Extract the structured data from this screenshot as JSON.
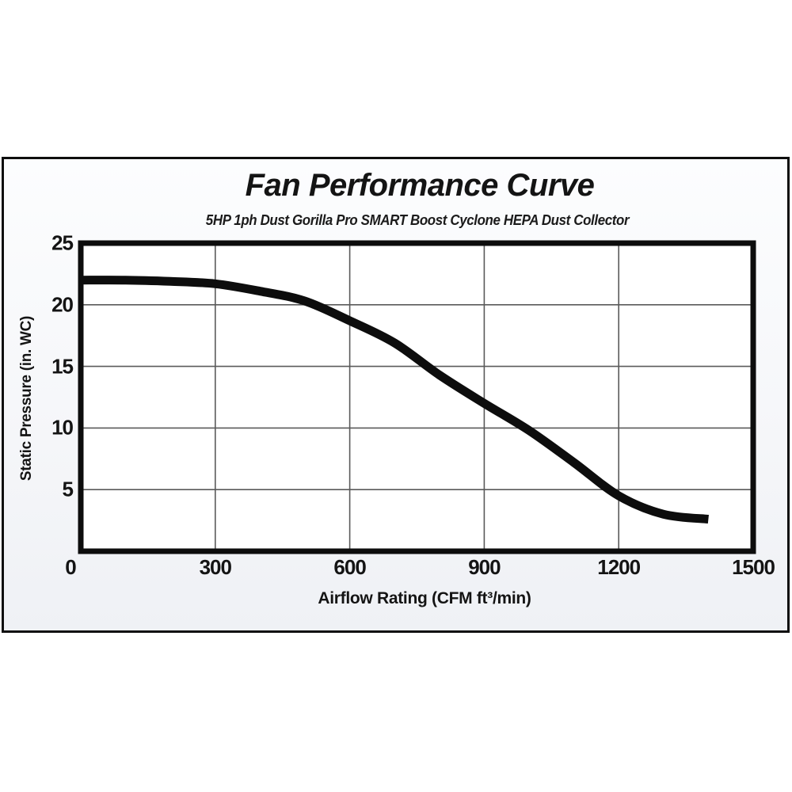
{
  "chart_data": {
    "type": "line",
    "title": "Fan Performance Curve",
    "subtitle": "5HP 1ph Dust Gorilla Pro SMART Boost Cyclone HEPA Dust Collector",
    "xlabel": "Airflow Rating (CFM ft³/min)",
    "ylabel": "Static Pressure (in. WC)",
    "xlim": [
      0,
      1500
    ],
    "ylim": [
      0,
      25
    ],
    "x_ticks": [
      0,
      300,
      600,
      900,
      1200,
      1500
    ],
    "y_ticks": [
      5,
      10,
      15,
      20,
      25
    ],
    "origin_tick_label": "0",
    "grid": true,
    "legend_position": "none",
    "series": [
      {
        "name": "fan-performance-curve",
        "x": [
          0,
          100,
          200,
          300,
          400,
          500,
          600,
          700,
          800,
          900,
          1000,
          1100,
          1200,
          1300,
          1400
        ],
        "y": [
          22.0,
          22.0,
          21.9,
          21.7,
          21.1,
          20.3,
          18.7,
          16.9,
          14.3,
          12.0,
          9.8,
          7.2,
          4.5,
          3.0,
          2.6
        ]
      }
    ],
    "colors": {
      "curve": "#0d0d0d",
      "grid": "#5a5a5a",
      "axis": "#0d0d0d",
      "panel_background": "#f5f6f9",
      "plot_background": "#ffffff"
    }
  }
}
